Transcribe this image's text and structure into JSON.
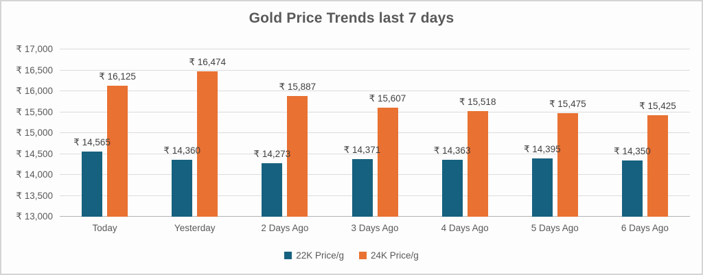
{
  "title": "Gold Price Trends last 7 days",
  "colors": {
    "series_22k": "#16617F",
    "series_24k": "#E97132",
    "title_text": "#595959",
    "axis_text": "#595959",
    "data_label_text": "#3F3F3F",
    "gridline": "#DCDCDC",
    "axis_line": "#B3B3B3",
    "frame_border": "#D4D4D4",
    "background": "#FDFDFD"
  },
  "chart_data": {
    "type": "bar",
    "title": "Gold Price Trends last 7 days",
    "categories": [
      "Today",
      "Yesterday",
      "2 Days Ago",
      "3 Days Ago",
      "4 Days Ago",
      "5 Days Ago",
      "6 Days Ago"
    ],
    "series": [
      {
        "name": "22K Price/g",
        "color": "#16617F",
        "values": [
          14565,
          14360,
          14273,
          14371,
          14363,
          14395,
          14350
        ],
        "labels": [
          "₹ 14,565",
          "₹ 14,360",
          "₹ 14,273",
          "₹ 14,371",
          "₹ 14,363",
          "₹ 14,395",
          "₹ 14,350"
        ]
      },
      {
        "name": "24K Price/g",
        "color": "#E97132",
        "values": [
          16125,
          16474,
          15887,
          15607,
          15518,
          15475,
          15425
        ],
        "labels": [
          "₹ 16,125",
          "₹ 16,474",
          "₹ 15,887",
          "₹ 15,607",
          "₹ 15,518",
          "₹ 15,475",
          "₹ 15,425"
        ]
      }
    ],
    "xlabel": "",
    "ylabel": "",
    "ylim": [
      13000,
      17000
    ],
    "ytick_step": 500,
    "yticks": [
      {
        "value": 13000,
        "label": "₹ 13,000"
      },
      {
        "value": 13500,
        "label": "₹ 13,500"
      },
      {
        "value": 14000,
        "label": "₹ 14,000"
      },
      {
        "value": 14500,
        "label": "₹ 14,500"
      },
      {
        "value": 15000,
        "label": "₹ 15,000"
      },
      {
        "value": 15500,
        "label": "₹ 15,500"
      },
      {
        "value": 16000,
        "label": "₹ 16,000"
      },
      {
        "value": 16500,
        "label": "₹ 16,500"
      },
      {
        "value": 17000,
        "label": "₹ 17,000"
      }
    ],
    "grid": true,
    "data_labels_visible": true,
    "legend_position": "bottom"
  },
  "legend": {
    "items": [
      {
        "label": "22K Price/g",
        "color": "#16617F"
      },
      {
        "label": "24K Price/g",
        "color": "#E97132"
      }
    ]
  }
}
